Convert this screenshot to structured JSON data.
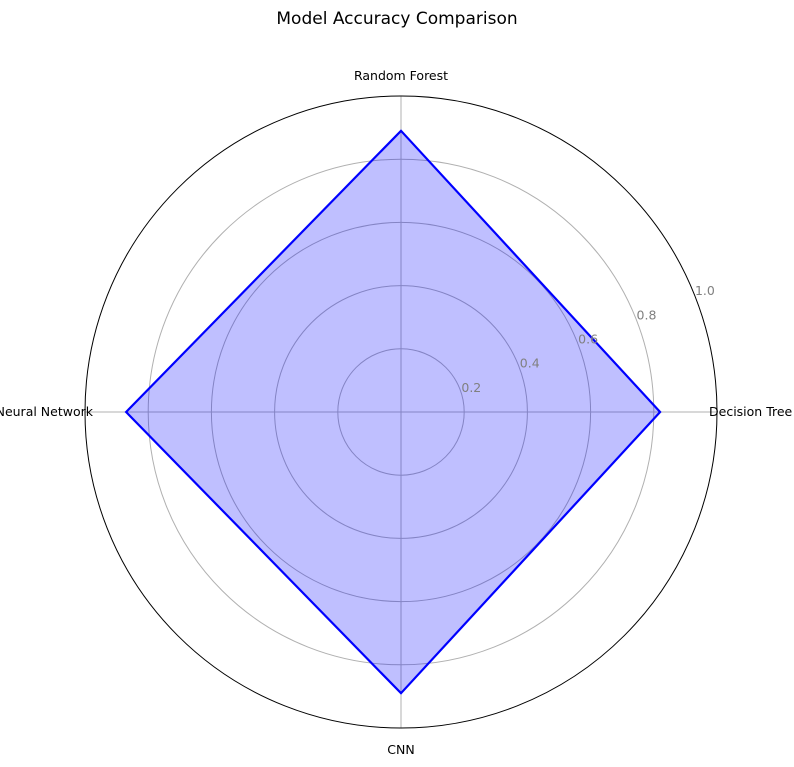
{
  "chart_data": {
    "type": "radar",
    "title": "Model Accuracy Comparison",
    "categories": [
      "Decision Tree",
      "Random Forest",
      "Neural Network",
      "CNN"
    ],
    "series": [
      {
        "values": [
          0.82,
          0.89,
          0.87,
          0.89
        ]
      }
    ],
    "rlim": [
      0,
      1.0
    ],
    "r_ticks": [
      "0.2",
      "0.4",
      "0.6",
      "0.8",
      "1.0"
    ],
    "r_tick_values": [
      0.2,
      0.4,
      0.6,
      0.8,
      1.0
    ],
    "grid": true,
    "colors": {
      "line": "#0000ff",
      "fill": "#0000ff",
      "grid": "#b0b0b0",
      "frame": "#000000",
      "tick": "#808080"
    }
  }
}
